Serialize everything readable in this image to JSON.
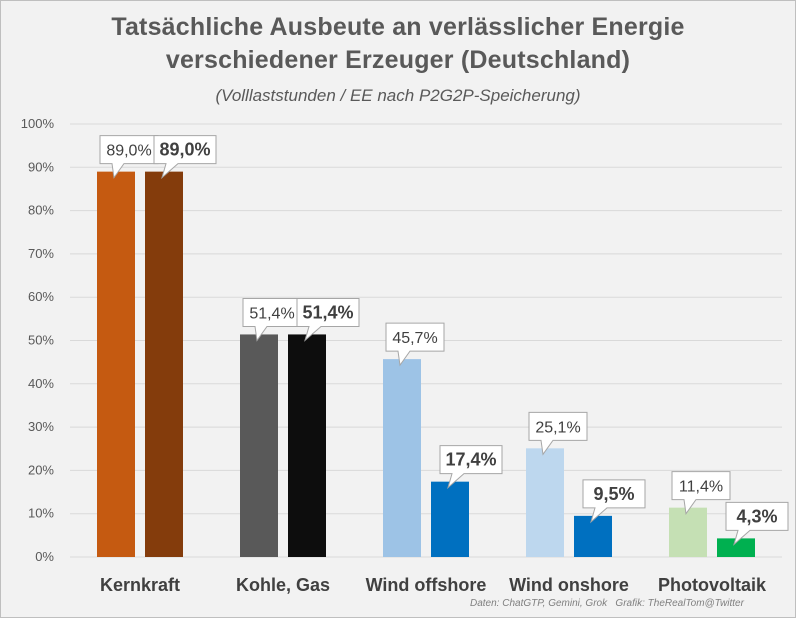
{
  "chart_data": {
    "type": "bar",
    "title": "Tatsächliche Ausbeute an verlässlicher Energie verschiedener Erzeuger (Deutschland)",
    "title_lines": [
      "Tatsächliche Ausbeute an verlässlicher Energie",
      "verschiedener Erzeuger (Deutschland)"
    ],
    "subtitle": "(Volllaststunden / EE nach P2G2P-Speicherung)",
    "source": "Daten: ChatGTP, Gemini, Grok   Grafik: TheRealTom@Twitter",
    "ylim": [
      0,
      100
    ],
    "yticks": [
      0,
      10,
      20,
      30,
      40,
      50,
      60,
      70,
      80,
      90,
      100
    ],
    "ytick_labels": [
      "0%",
      "10%",
      "20%",
      "30%",
      "40%",
      "50%",
      "60%",
      "70%",
      "80%",
      "90%",
      "100%"
    ],
    "grid": true,
    "legend": "none",
    "categories": [
      "Kernkraft",
      "Kohle, Gas",
      "Wind offshore",
      "Wind onshore",
      "Photovoltaik"
    ],
    "groups": [
      {
        "bars": [
          {
            "value": 89.0,
            "label": "89,0%",
            "color": "#c55a11",
            "bold": false
          },
          {
            "value": 89.0,
            "label": "89,0%",
            "color": "#843c0c",
            "bold": true
          }
        ]
      },
      {
        "bars": [
          {
            "value": 51.4,
            "label": "51,4%",
            "color": "#595959",
            "bold": false
          },
          {
            "value": 51.4,
            "label": "51,4%",
            "color": "#0d0d0d",
            "bold": true
          }
        ]
      },
      {
        "bars": [
          {
            "value": 45.7,
            "label": "45,7%",
            "color": "#9dc3e6",
            "bold": false
          },
          {
            "value": 17.4,
            "label": "17,4%",
            "color": "#0070c0",
            "bold": true
          }
        ]
      },
      {
        "bars": [
          {
            "value": 25.1,
            "label": "25,1%",
            "color": "#bdd7ee",
            "bold": false
          },
          {
            "value": 9.5,
            "label": "9,5%",
            "color": "#0070c0",
            "bold": true
          }
        ]
      },
      {
        "bars": [
          {
            "value": 11.4,
            "label": "11,4%",
            "color": "#c5e0b4",
            "bold": false
          },
          {
            "value": 4.3,
            "label": "4,3%",
            "color": "#00b050",
            "bold": true
          }
        ]
      }
    ]
  }
}
